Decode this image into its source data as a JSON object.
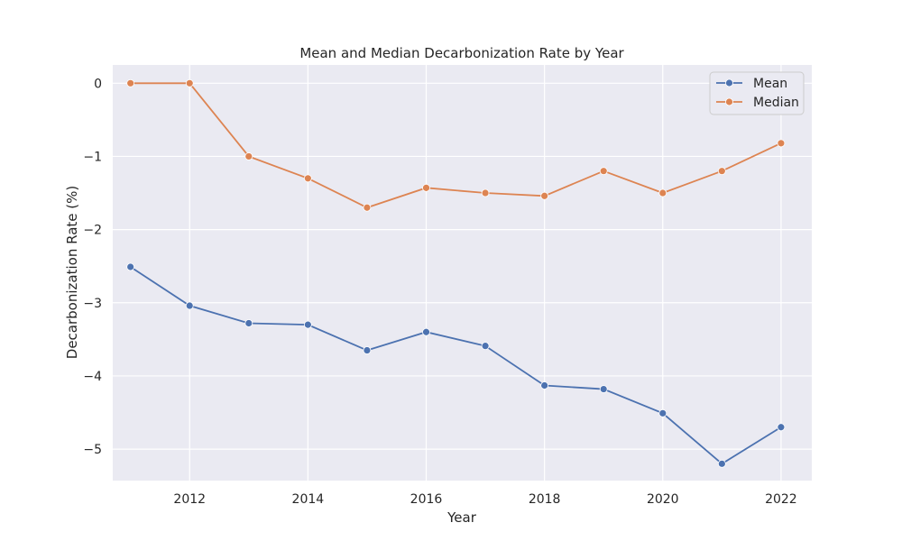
{
  "chart_data": {
    "type": "line",
    "title": "Mean and Median Decarbonization Rate by Year",
    "xlabel": "Year",
    "ylabel": "Decarbonization Rate (%)",
    "x": [
      2011,
      2012,
      2013,
      2014,
      2015,
      2016,
      2017,
      2018,
      2019,
      2020,
      2021,
      2022
    ],
    "xticks": [
      2012,
      2014,
      2016,
      2018,
      2020,
      2022
    ],
    "yticks": [
      0,
      -1,
      -2,
      -3,
      -4,
      -5
    ],
    "ytick_labels": [
      "0",
      "−1",
      "−2",
      "−3",
      "−4",
      "−5"
    ],
    "xlim": [
      2010.7,
      2022.52
    ],
    "ylim": [
      -5.43,
      0.25
    ],
    "grid": true,
    "legend_position": "top-right",
    "series": [
      {
        "name": "Mean",
        "color": "#4C72B0",
        "values": [
          -2.51,
          -3.04,
          -3.28,
          -3.3,
          -3.65,
          -3.4,
          -3.59,
          -4.13,
          -4.18,
          -4.51,
          -5.2,
          -4.7
        ]
      },
      {
        "name": "Median",
        "color": "#DD8452",
        "values": [
          0.0,
          0.0,
          -1.0,
          -1.3,
          -1.7,
          -1.43,
          -1.5,
          -1.54,
          -1.2,
          -1.5,
          -1.2,
          -0.82
        ]
      }
    ],
    "style": {
      "plot_background": "#EAEAF2",
      "grid_color": "#FFFFFF",
      "text_color": "#262626"
    }
  }
}
